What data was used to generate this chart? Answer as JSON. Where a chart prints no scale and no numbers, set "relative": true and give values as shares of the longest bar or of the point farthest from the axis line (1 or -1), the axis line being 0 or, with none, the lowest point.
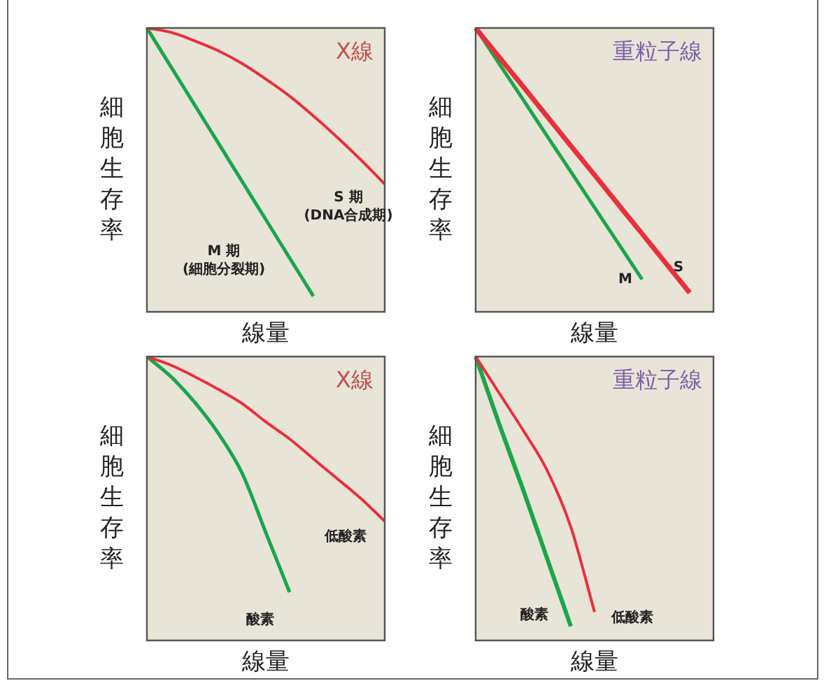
{
  "chart_data": [
    {
      "type": "line",
      "relative": true,
      "title": "X線",
      "xlabel": "線量",
      "ylabel": "細胞生存率",
      "marker": "none",
      "categories": [
        null,
        null,
        null,
        null,
        null,
        null,
        null,
        null,
        null,
        null,
        null
      ],
      "series": [
        {
          "name": "S 期\n(DNA合成期)",
          "color": "#e8303a",
          "values": [
            1,
            0.985,
            0.955,
            0.92,
            0.875,
            0.82,
            0.76,
            0.69,
            0.615,
            0.535,
            0.45
          ]
        },
        {
          "name": "M 期\n(細胞分裂期)",
          "color": "#1aa64a",
          "values": [
            1,
            0.865,
            0.73,
            0.595,
            0.46,
            0.325,
            0.19,
            0.055,
            null,
            null,
            null
          ]
        }
      ]
    },
    {
      "type": "line",
      "relative": true,
      "title": "重粒子線",
      "xlabel": "線量",
      "ylabel": "細胞生存率",
      "marker": "none",
      "categories": [
        null,
        null,
        null,
        null,
        null,
        null,
        null,
        null,
        null,
        null,
        null
      ],
      "series": [
        {
          "name": "S",
          "color": "#e8303a",
          "values": [
            1,
            0.896,
            0.793,
            0.689,
            0.585,
            0.482,
            0.378,
            0.275,
            0.171,
            0.067,
            null
          ]
        },
        {
          "name": "M",
          "color": "#1aa64a",
          "values": [
            1,
            0.873,
            0.747,
            0.62,
            0.494,
            0.367,
            0.241,
            0.114,
            null,
            null,
            null
          ]
        }
      ]
    },
    {
      "type": "line",
      "relative": true,
      "title": "X線",
      "xlabel": "線量",
      "ylabel": "細胞生存率",
      "marker": "none",
      "categories": [
        null,
        null,
        null,
        null,
        null,
        null,
        null,
        null,
        null,
        null,
        null
      ],
      "series": [
        {
          "name": "低酸素",
          "color": "#e8303a",
          "values": [
            1,
            0.97,
            0.93,
            0.885,
            0.835,
            0.77,
            0.71,
            0.64,
            0.57,
            0.5,
            0.42
          ]
        },
        {
          "name": "酸素",
          "color": "#1aa64a",
          "values": [
            1,
            0.93,
            0.84,
            0.73,
            0.59,
            0.38,
            0.17,
            null,
            null,
            null,
            null
          ]
        }
      ]
    },
    {
      "type": "line",
      "relative": true,
      "title": "重粒子線",
      "xlabel": "線量",
      "ylabel": "細胞生存率",
      "marker": "none",
      "categories": [
        null,
        null,
        null,
        null,
        null,
        null,
        null,
        null,
        null,
        null,
        null
      ],
      "series": [
        {
          "name": "低酸素",
          "color": "#e8303a",
          "values": [
            1,
            0.87,
            0.74,
            0.6,
            0.4,
            0.1,
            null,
            null,
            null,
            null,
            null
          ]
        },
        {
          "name": "酸素",
          "color": "#1aa64a",
          "values": [
            1,
            0.76,
            0.53,
            0.29,
            0.05,
            null,
            null,
            null,
            null,
            null,
            null
          ]
        }
      ]
    }
  ]
}
